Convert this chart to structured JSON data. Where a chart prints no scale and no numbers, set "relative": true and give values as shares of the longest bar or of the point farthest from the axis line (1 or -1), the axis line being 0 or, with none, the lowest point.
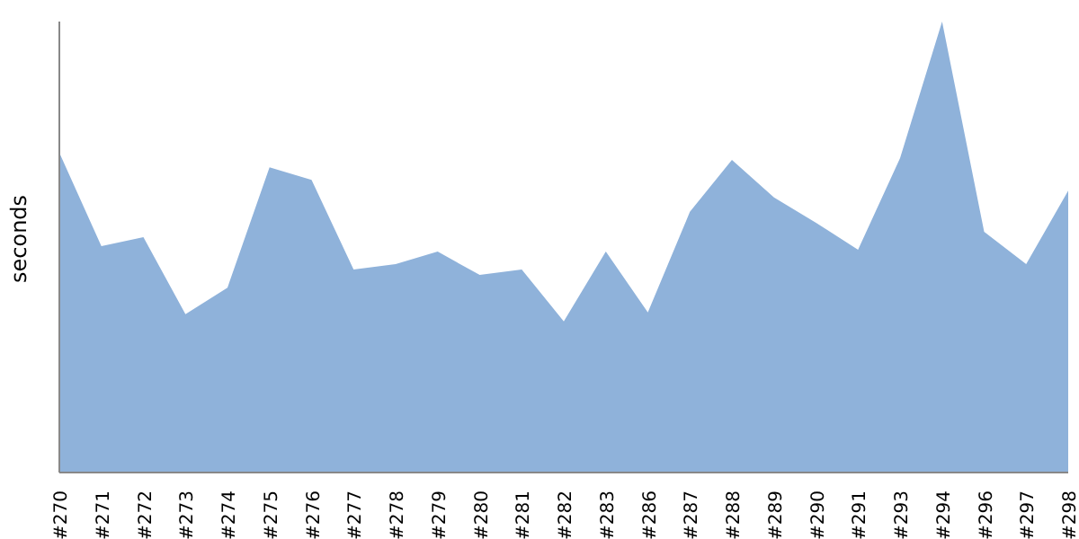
{
  "chart_data": {
    "type": "area",
    "ylabel": "seconds",
    "relative": true,
    "color": "#8fb2da",
    "grid": false,
    "legend": false,
    "categories": [
      "#270",
      "#271",
      "#272",
      "#273",
      "#274",
      "#275",
      "#276",
      "#277",
      "#278",
      "#279",
      "#280",
      "#281",
      "#282",
      "#283",
      "#286",
      "#287",
      "#288",
      "#289",
      "#290",
      "#291",
      "#293",
      "#294",
      "#296",
      "#297",
      "#298"
    ],
    "values": [
      0.709,
      0.502,
      0.522,
      0.351,
      0.41,
      0.677,
      0.649,
      0.45,
      0.462,
      0.49,
      0.438,
      0.45,
      0.335,
      0.49,
      0.355,
      0.578,
      0.693,
      0.61,
      0.554,
      0.494,
      0.697,
      1,
      0.534,
      0.462,
      0.625
    ]
  }
}
